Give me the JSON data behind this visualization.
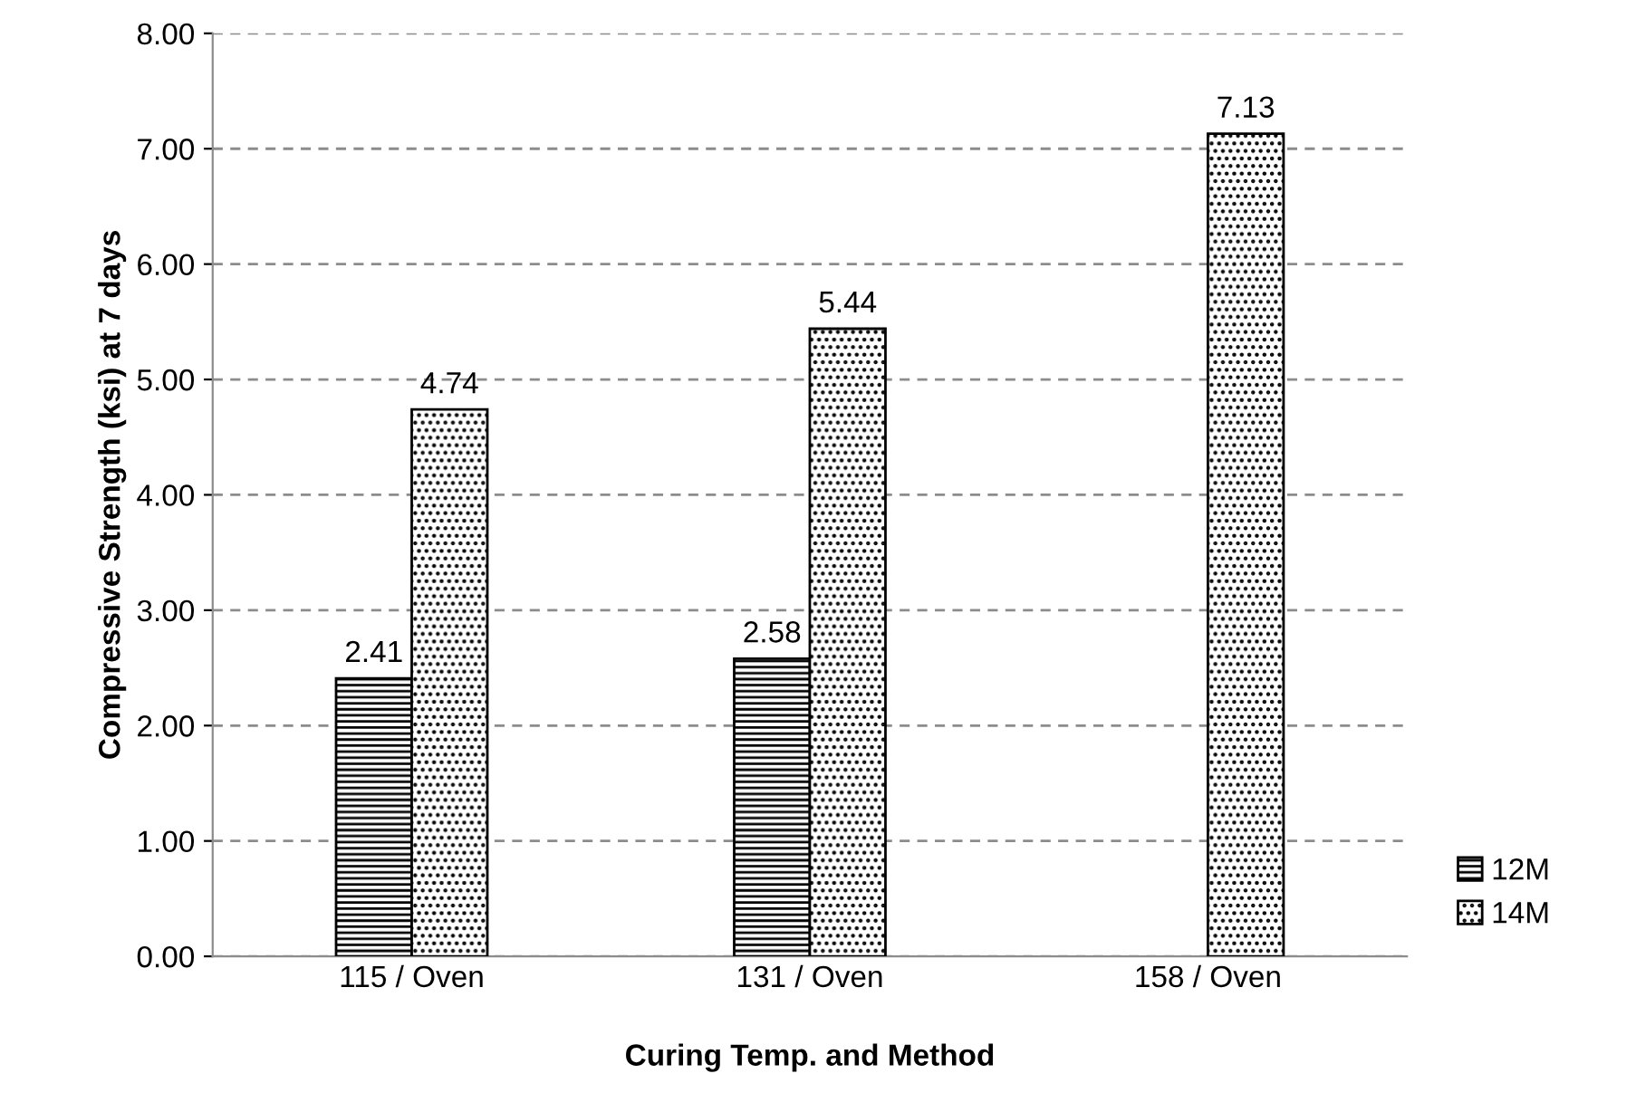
{
  "chart_data": {
    "type": "bar",
    "xlabel": "Curing Temp. and Method",
    "ylabel": "Compressive Strength (ksi) at 7 days",
    "categories": [
      "115 / Oven",
      "131 / Oven",
      "158 / Oven"
    ],
    "series": [
      {
        "name": "12M",
        "color": "#000000",
        "values": [
          2.41,
          2.58,
          null
        ]
      },
      {
        "name": "14M",
        "color": "#000000",
        "values": [
          4.74,
          5.44,
          7.13
        ]
      }
    ],
    "ylim": [
      0,
      8
    ],
    "yticks": [
      {
        "value": 0,
        "label": "0.00"
      },
      {
        "value": 1,
        "label": "1.00"
      },
      {
        "value": 2,
        "label": "2.00"
      },
      {
        "value": 3,
        "label": "3.00"
      },
      {
        "value": 4,
        "label": "4.00"
      },
      {
        "value": 5,
        "label": "5.00"
      },
      {
        "value": 6,
        "label": "6.00"
      },
      {
        "value": 7,
        "label": "7.00"
      },
      {
        "value": 8,
        "label": "8.00"
      }
    ],
    "grid": "y",
    "legend": "right",
    "data_labels": true
  }
}
